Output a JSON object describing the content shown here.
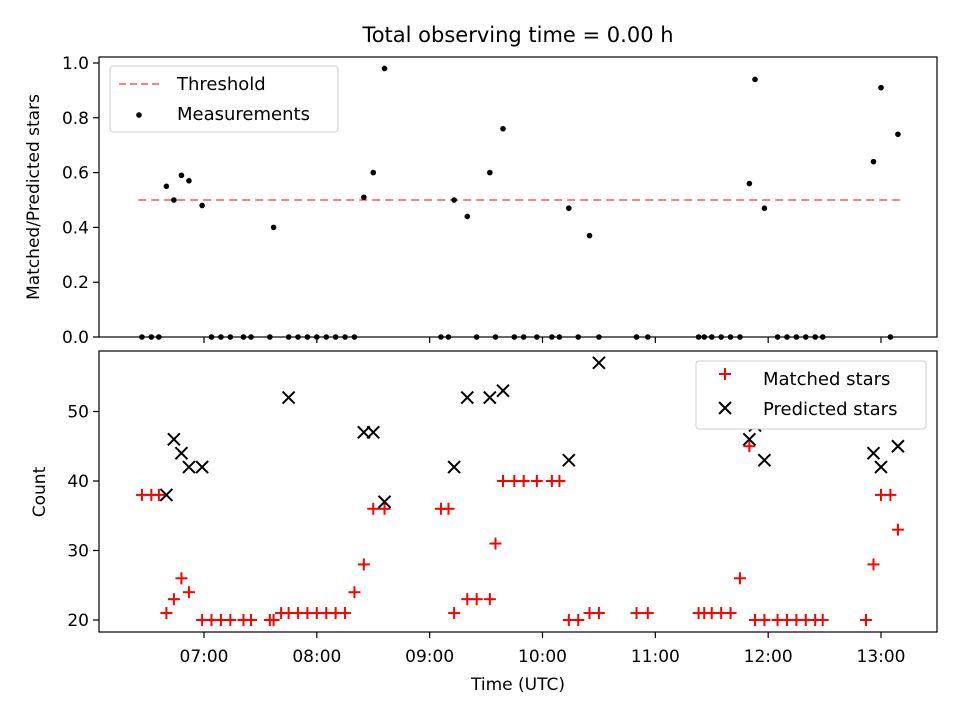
{
  "chart_data": [
    {
      "type": "scatter",
      "title": "Total observing time = 0.00 h",
      "xlabel": "",
      "ylabel": "Matched/Predicted stars",
      "ylim": [
        0,
        1.02
      ],
      "yticks": [
        "0.0",
        "0.2",
        "0.4",
        "0.6",
        "0.8",
        "1.0"
      ],
      "grid": false,
      "legend": {
        "placement": "top-left"
      },
      "series": [
        {
          "name": "Threshold",
          "style": "dashed-line",
          "color": "#ff7f7f",
          "x": [
            "06:25",
            "13:10"
          ],
          "y": [
            0.5,
            0.5
          ]
        },
        {
          "name": "Measurements",
          "style": "dot",
          "color": "#000000",
          "x": [
            "06:27",
            "06:32",
            "06:36",
            "06:40",
            "06:44",
            "06:48",
            "06:52",
            "06:59",
            "07:04",
            "07:09",
            "07:14",
            "07:21",
            "07:25",
            "07:35",
            "07:37",
            "07:45",
            "07:50",
            "07:55",
            "08:00",
            "08:05",
            "08:10",
            "08:15",
            "08:20",
            "08:25",
            "08:30",
            "08:36",
            "09:06",
            "09:10",
            "09:13",
            "09:20",
            "09:25",
            "09:32",
            "09:35",
            "09:39",
            "09:45",
            "09:50",
            "09:57",
            "10:05",
            "10:09",
            "10:14",
            "10:19",
            "10:25",
            "10:30",
            "10:50",
            "10:56",
            "11:23",
            "11:26",
            "11:30",
            "11:35",
            "11:40",
            "11:45",
            "11:50",
            "11:53",
            "11:58",
            "12:05",
            "12:10",
            "12:15",
            "12:20",
            "12:25",
            "12:29",
            "12:56",
            "13:00",
            "13:05",
            "13:09"
          ],
          "y": [
            0,
            0,
            0,
            0.55,
            0.5,
            0.59,
            0.57,
            0.48,
            0,
            0,
            0,
            0,
            0,
            0,
            0.4,
            0,
            0,
            0,
            0,
            0,
            0,
            0,
            0,
            0.51,
            0.6,
            0.98,
            0,
            0,
            0.5,
            0.44,
            0,
            0.6,
            0,
            0.76,
            0,
            0,
            0,
            0,
            0,
            0.47,
            0,
            0.37,
            0,
            0,
            0,
            0,
            0,
            0,
            0,
            0,
            0,
            0.56,
            0.94,
            0.47,
            0,
            0,
            0,
            0,
            0,
            0,
            0.64,
            0.91,
            0,
            0.74
          ]
        }
      ]
    },
    {
      "type": "scatter",
      "title": "",
      "xlabel": "Time (UTC)",
      "ylabel": "Count",
      "xticks": [
        "07:00",
        "08:00",
        "09:00",
        "10:00",
        "11:00",
        "12:00",
        "13:00"
      ],
      "yticks": [
        "20",
        "30",
        "40",
        "50"
      ],
      "ylim": [
        18.1,
        58.5
      ],
      "grid": false,
      "legend": {
        "placement": "top-right"
      },
      "series": [
        {
          "name": "Matched stars",
          "style": "plus",
          "color": "#ff0000",
          "x": [
            "06:27",
            "06:32",
            "06:36",
            "06:40",
            "06:44",
            "06:48",
            "06:52",
            "06:59",
            "07:04",
            "07:09",
            "07:14",
            "07:21",
            "07:25",
            "07:35",
            "07:37",
            "07:41",
            "07:45",
            "07:50",
            "07:55",
            "08:00",
            "08:05",
            "08:10",
            "08:15",
            "08:20",
            "08:25",
            "08:30",
            "08:36",
            "09:06",
            "09:10",
            "09:13",
            "09:20",
            "09:25",
            "09:32",
            "09:35",
            "09:39",
            "09:45",
            "09:50",
            "09:57",
            "10:05",
            "10:09",
            "10:14",
            "10:19",
            "10:25",
            "10:30",
            "10:50",
            "10:56",
            "11:23",
            "11:26",
            "11:30",
            "11:35",
            "11:40",
            "11:45",
            "11:50",
            "11:53",
            "11:58",
            "12:05",
            "12:10",
            "12:15",
            "12:20",
            "12:25",
            "12:29",
            "12:52",
            "12:56",
            "13:00",
            "13:05",
            "13:09"
          ],
          "y": [
            38,
            38,
            38,
            21,
            23,
            26,
            24,
            20,
            20,
            20,
            20,
            20,
            20,
            20,
            20,
            21,
            21,
            21,
            21,
            21,
            21,
            21,
            21,
            24,
            28,
            36,
            36,
            36,
            36,
            21,
            23,
            23,
            23,
            31,
            40,
            40,
            40,
            40,
            40,
            40,
            20,
            20,
            21,
            21,
            21,
            21,
            21,
            21,
            21,
            21,
            21,
            26,
            45,
            20,
            20,
            20,
            20,
            20,
            20,
            20,
            20,
            20,
            28,
            38,
            38,
            33
          ]
        },
        {
          "name": "Predicted stars",
          "style": "x",
          "color": "#000000",
          "x": [
            "06:40",
            "06:44",
            "06:48",
            "06:52",
            "06:59",
            "07:45",
            "08:25",
            "08:30",
            "08:36",
            "09:13",
            "09:20",
            "09:32",
            "09:39",
            "10:14",
            "10:30",
            "11:50",
            "11:53",
            "11:58",
            "12:56",
            "13:00",
            "13:09"
          ],
          "y": [
            38,
            46,
            44,
            42,
            42,
            52,
            47,
            47,
            37,
            42,
            52,
            52,
            53,
            43,
            57,
            46,
            48,
            43,
            44,
            42,
            45
          ]
        }
      ]
    }
  ]
}
